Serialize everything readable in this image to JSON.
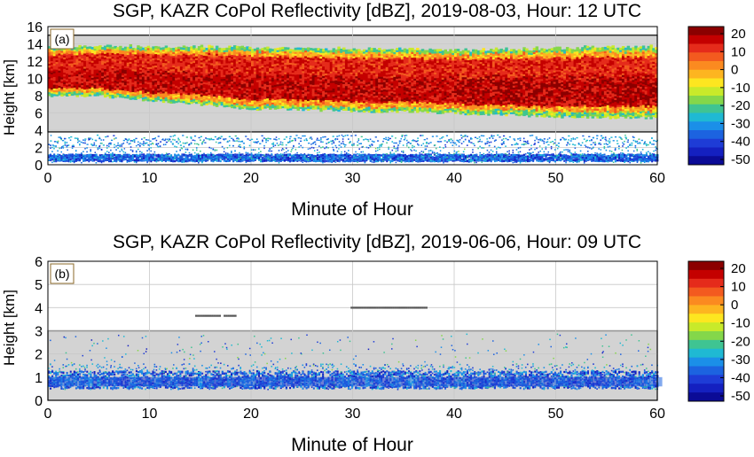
{
  "chart_data": [
    {
      "type": "heatmap",
      "panel_label": "(a)",
      "title": "SGP, KAZR CoPol Reflectivity [dBZ], 2019-08-03, Hour: 12 UTC",
      "xlabel": "Minute of Hour",
      "ylabel": "Height [km]",
      "xlim": [
        0,
        60
      ],
      "ylim": [
        0,
        16
      ],
      "x_ticks": [
        "0",
        "10",
        "20",
        "30",
        "40",
        "50",
        "60"
      ],
      "y_ticks": [
        "0",
        "2",
        "4",
        "6",
        "8",
        "10",
        "12",
        "14",
        "16"
      ],
      "grid": true,
      "shaded_band_km": [
        3.8,
        15
      ],
      "cloud_layer": {
        "x": [
          0,
          5,
          10,
          15,
          20,
          25,
          30,
          35,
          40,
          45,
          50,
          55,
          60
        ],
        "base_km": [
          8.0,
          8.0,
          7.5,
          7.0,
          6.5,
          6.4,
          6.2,
          6.2,
          6.0,
          5.8,
          5.6,
          5.5,
          5.5
        ],
        "top_km": [
          13.5,
          13.6,
          13.6,
          13.6,
          13.5,
          13.4,
          13.3,
          13.3,
          13.2,
          13.3,
          13.4,
          13.5,
          13.6
        ],
        "peak_dbz": 15
      },
      "near_surface_layer_km": [
        0.3,
        3.2
      ],
      "colorbar": {
        "label_ticks": [
          "20",
          "10",
          "0",
          "-10",
          "-20",
          "-30",
          "-40",
          "-50"
        ],
        "range_dbz": [
          -50,
          20
        ]
      }
    },
    {
      "type": "heatmap",
      "panel_label": "(b)",
      "title": "SGP, KAZR CoPol Reflectivity [dBZ], 2019-06-06, Hour: 09 UTC",
      "xlabel": "Minute of Hour",
      "ylabel": "Height [km]",
      "xlim": [
        0,
        60
      ],
      "ylim": [
        0,
        6
      ],
      "x_ticks": [
        "0",
        "10",
        "20",
        "30",
        "40",
        "50",
        "60"
      ],
      "y_ticks": [
        "0",
        "1",
        "2",
        "3",
        "4",
        "5",
        "6"
      ],
      "grid": true,
      "shaded_band_km": [
        0,
        3.0
      ],
      "near_surface_layer_km": [
        0.5,
        1.6
      ],
      "sparse_points": [
        {
          "x_range": [
            14.5,
            17
          ],
          "height_km": 3.65
        },
        {
          "x_range": [
            17.3,
            18.5
          ],
          "height_km": 3.65
        },
        {
          "x_range": [
            29.8,
            37.2
          ],
          "height_km": 4.0
        }
      ],
      "colorbar": {
        "label_ticks": [
          "20",
          "10",
          "0",
          "-10",
          "-20",
          "-30",
          "-40",
          "-50"
        ],
        "range_dbz": [
          -50,
          20
        ]
      }
    }
  ],
  "colors": {
    "shade": "#d3d3d3",
    "grid": "#c8c8c8",
    "colorbar_bands": [
      "#8b0000",
      "#c40000",
      "#e52b1b",
      "#f35a1f",
      "#fb8a20",
      "#fdb520",
      "#fde620",
      "#c8ea2a",
      "#84d74a",
      "#3fc492",
      "#1fb9d3",
      "#1b8fe8",
      "#1c63e0",
      "#1e3cd6",
      "#1420c0",
      "#0b0b96"
    ]
  }
}
